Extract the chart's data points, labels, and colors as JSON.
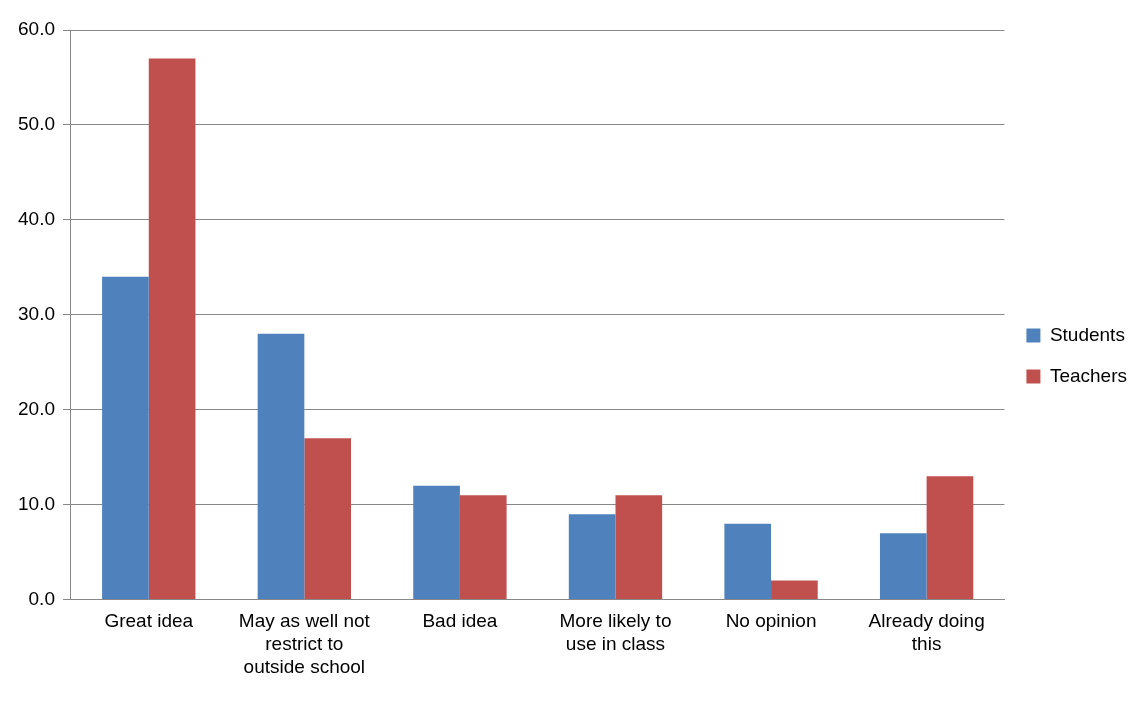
{
  "chart_data": {
    "type": "bar",
    "categories": [
      "Great idea",
      "May as well not restrict to outside school",
      "Bad idea",
      "More likely to use in class",
      "No opinion",
      "Already doing this"
    ],
    "series": [
      {
        "name": "Students",
        "color": "#4f81bd",
        "values": [
          34,
          28,
          12,
          9,
          8,
          7
        ]
      },
      {
        "name": "Teachers",
        "color": "#c0504d",
        "values": [
          57,
          17,
          11,
          11,
          2,
          13
        ]
      }
    ],
    "ylim": [
      0,
      60
    ],
    "yticks": [
      {
        "value": 0,
        "label": "0.0"
      },
      {
        "value": 10,
        "label": "10.0"
      },
      {
        "value": 20,
        "label": "20.0"
      },
      {
        "value": 30,
        "label": "30.0"
      },
      {
        "value": 40,
        "label": "40.0"
      },
      {
        "value": 50,
        "label": "50.0"
      },
      {
        "value": 60,
        "label": "60.0"
      }
    ],
    "grid": "y",
    "legend": "right"
  }
}
